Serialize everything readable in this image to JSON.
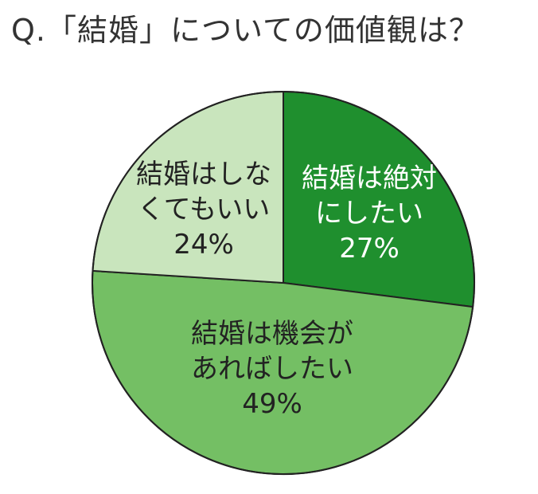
{
  "chart_data": {
    "type": "pie",
    "title": "Q.「結婚」についての価値観は？",
    "slices": [
      {
        "label_lines": [
          "結婚は絶対",
          "にしたい"
        ],
        "value": 27,
        "value_text": "27%",
        "color": "#1f8f2e",
        "text_color": "#ffffff"
      },
      {
        "label_lines": [
          "結婚は機会が",
          "あればしたい"
        ],
        "value": 49,
        "value_text": "49%",
        "color": "#74bf64",
        "text_color": "#222222"
      },
      {
        "label_lines": [
          "結婚はしな",
          "くてもいい"
        ],
        "value": 24,
        "value_text": "24%",
        "color": "#c9e5bd",
        "text_color": "#222222"
      }
    ],
    "start_angle_deg": 0,
    "direction": "clockwise",
    "border_color": "#222222"
  }
}
